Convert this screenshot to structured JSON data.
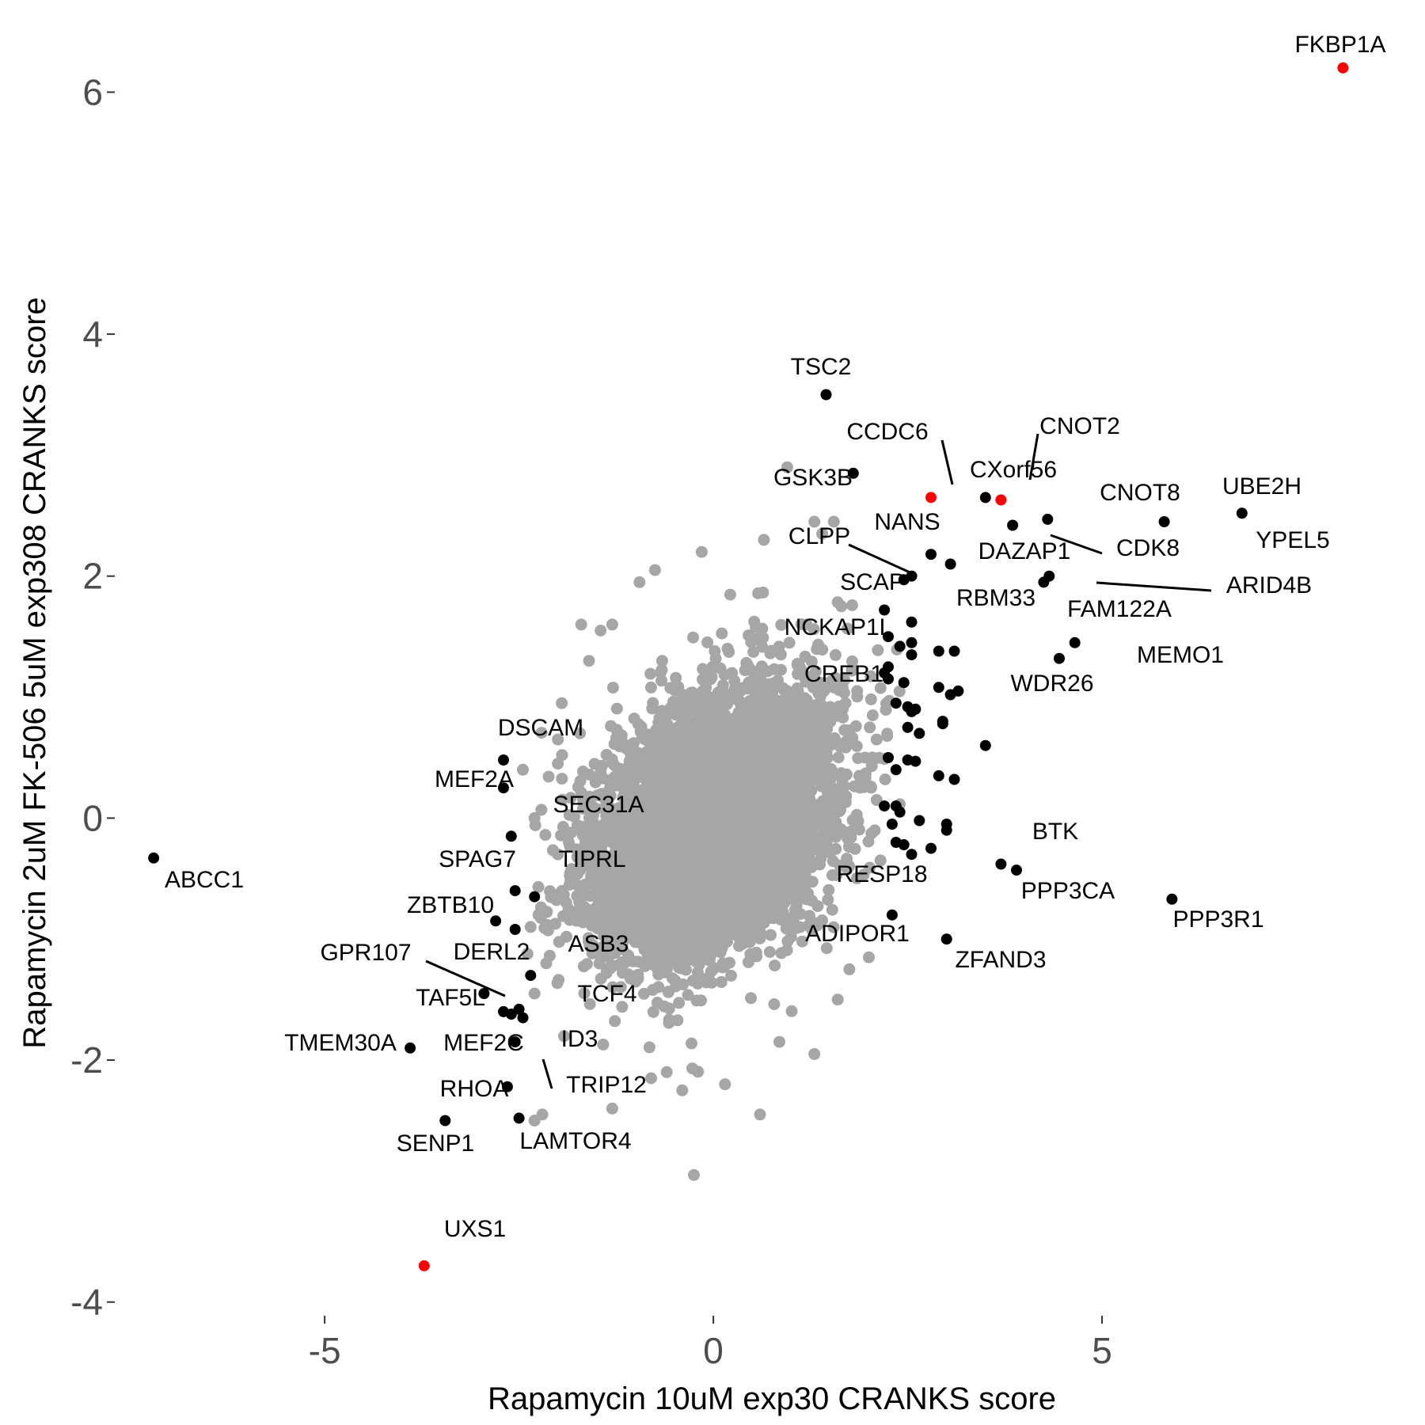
{
  "chart_data": {
    "type": "scatter",
    "xlabel": "Rapamycin 10uM exp30 CRANKS score",
    "ylabel": "Rapamycin 2uM FK-506 5uM exp308 CRANKS score",
    "xlim": [
      -7.7,
      8.9
    ],
    "ylim": [
      -4.1,
      6.5
    ],
    "x_ticks": [
      -5,
      0,
      5
    ],
    "y_ticks": [
      -4,
      -2,
      0,
      2,
      4,
      6
    ],
    "x_tick_labels": [
      "-5",
      "0",
      "5"
    ],
    "y_tick_labels": [
      "-4",
      "-2",
      "0",
      "2",
      "4",
      "6"
    ],
    "grid": false,
    "legend": "none",
    "colors": {
      "background": "#c0c0c0",
      "highlight": "#000000",
      "hit": "#ff0000"
    },
    "background_cloud": {
      "x_center": 0.0,
      "y_center": -0.05,
      "x_sd": 0.72,
      "y_sd": 0.52,
      "correlation": 0.35
    },
    "background_points": [
      [
        -0.15,
        2.2
      ],
      [
        0.65,
        2.3
      ],
      [
        -0.75,
        2.05
      ],
      [
        -0.95,
        1.95
      ],
      [
        -1.7,
        1.6
      ],
      [
        -1.45,
        1.55
      ],
      [
        -1.3,
        1.6
      ],
      [
        0.95,
        2.9
      ],
      [
        1.55,
        2.45
      ],
      [
        1.3,
        2.45
      ],
      [
        1.4,
        2.35
      ],
      [
        -2.0,
        0.65
      ],
      [
        -2.45,
        0.4
      ],
      [
        -2.0,
        0.45
      ],
      [
        -2.3,
        0.0
      ],
      [
        -2.0,
        -0.3
      ],
      [
        -2.35,
        -0.9
      ],
      [
        -2.15,
        -1.2
      ],
      [
        -2.3,
        -1.45
      ],
      [
        -2.2,
        -2.45
      ],
      [
        -2.3,
        -2.5
      ],
      [
        -1.3,
        -2.4
      ],
      [
        -0.8,
        -2.15
      ],
      [
        -0.4,
        -2.25
      ],
      [
        0.15,
        -2.2
      ],
      [
        0.6,
        -2.45
      ],
      [
        0.85,
        -1.85
      ],
      [
        1.3,
        -1.95
      ],
      [
        1.6,
        -1.5
      ],
      [
        2.0,
        -1.15
      ],
      [
        1.75,
        -1.25
      ],
      [
        -0.25,
        -2.95
      ],
      [
        -0.6,
        -2.1
      ],
      [
        1.95,
        0.5
      ],
      [
        2.05,
        0.85
      ],
      [
        1.85,
        1.05
      ],
      [
        2.1,
        0.15
      ],
      [
        2.15,
        -0.35
      ],
      [
        1.7,
        0.95
      ],
      [
        1.2,
        1.6
      ],
      [
        -1.55,
        -1.05
      ],
      [
        -1.85,
        -0.55
      ],
      [
        -1.95,
        0.95
      ],
      [
        -1.6,
        1.3
      ]
    ],
    "highlight_points": [
      [
        1.45,
        3.5
      ],
      [
        1.8,
        2.85
      ],
      [
        3.5,
        2.65
      ],
      [
        3.85,
        2.42
      ],
      [
        4.3,
        2.47
      ],
      [
        5.8,
        2.45
      ],
      [
        6.8,
        2.52
      ],
      [
        2.8,
        2.18
      ],
      [
        3.05,
        2.1
      ],
      [
        2.45,
        1.97
      ],
      [
        2.55,
        2.0
      ],
      [
        4.25,
        1.95
      ],
      [
        4.32,
        2.0
      ],
      [
        2.2,
        1.72
      ],
      [
        2.55,
        1.62
      ],
      [
        2.25,
        1.5
      ],
      [
        2.55,
        1.45
      ],
      [
        2.4,
        1.42
      ],
      [
        2.55,
        1.35
      ],
      [
        2.9,
        1.38
      ],
      [
        3.1,
        1.38
      ],
      [
        4.65,
        1.45
      ],
      [
        4.45,
        1.32
      ],
      [
        2.25,
        1.25
      ],
      [
        2.2,
        1.2
      ],
      [
        2.25,
        1.15
      ],
      [
        2.45,
        1.12
      ],
      [
        2.9,
        1.08
      ],
      [
        3.05,
        1.02
      ],
      [
        3.15,
        1.05
      ],
      [
        2.35,
        0.95
      ],
      [
        2.5,
        0.92
      ],
      [
        2.55,
        0.88
      ],
      [
        2.6,
        0.9
      ],
      [
        2.95,
        0.8
      ],
      [
        2.95,
        0.78
      ],
      [
        2.5,
        0.75
      ],
      [
        2.65,
        0.7
      ],
      [
        3.5,
        0.6
      ],
      [
        2.25,
        0.5
      ],
      [
        2.5,
        0.48
      ],
      [
        2.6,
        0.47
      ],
      [
        2.35,
        0.4
      ],
      [
        2.9,
        0.35
      ],
      [
        3.1,
        0.32
      ],
      [
        2.2,
        0.1
      ],
      [
        2.35,
        0.1
      ],
      [
        2.4,
        0.05
      ],
      [
        2.3,
        -0.05
      ],
      [
        2.65,
        -0.02
      ],
      [
        3.0,
        -0.05
      ],
      [
        3.0,
        -0.1
      ],
      [
        2.35,
        -0.2
      ],
      [
        2.45,
        -0.22
      ],
      [
        2.8,
        -0.25
      ],
      [
        2.55,
        -0.3
      ],
      [
        2.3,
        -0.8
      ],
      [
        3.0,
        -1.0
      ],
      [
        3.7,
        -0.38
      ],
      [
        3.9,
        -0.43
      ],
      [
        5.9,
        -0.67
      ],
      [
        -7.2,
        -0.33
      ],
      [
        -2.7,
        0.48
      ],
      [
        -2.7,
        0.25
      ],
      [
        -2.6,
        -0.15
      ],
      [
        -2.55,
        -0.6
      ],
      [
        -2.3,
        -0.65
      ],
      [
        -2.8,
        -0.85
      ],
      [
        -2.55,
        -0.92
      ],
      [
        -2.35,
        -1.3
      ],
      [
        -2.95,
        -1.45
      ],
      [
        -2.7,
        -1.6
      ],
      [
        -2.6,
        -1.62
      ],
      [
        -2.5,
        -1.58
      ],
      [
        -2.45,
        -1.65
      ],
      [
        -2.55,
        -1.85
      ],
      [
        -3.9,
        -1.9
      ],
      [
        -2.65,
        -2.22
      ],
      [
        -3.45,
        -2.5
      ],
      [
        -2.5,
        -2.48
      ]
    ],
    "hit_points": [
      [
        8.1,
        6.2
      ],
      [
        2.8,
        2.65
      ],
      [
        3.7,
        2.63
      ],
      [
        -3.72,
        -3.7
      ]
    ],
    "labels": [
      {
        "text": "FKBP1A",
        "x": 8.1,
        "y": 6.2
      },
      {
        "text": "TSC2",
        "x": 1.45,
        "y": 3.5
      },
      {
        "text": "CCDC6",
        "x": 2.8,
        "y": 2.65
      },
      {
        "text": "CNOT2",
        "x": 3.7,
        "y": 2.63
      },
      {
        "text": "CXorf56",
        "x": 3.7,
        "y": 2.63
      },
      {
        "text": "GSK3B",
        "x": 1.8,
        "y": 2.85
      },
      {
        "text": "CNOT8",
        "x": 5.8,
        "y": 2.45
      },
      {
        "text": "UBE2H",
        "x": 6.8,
        "y": 2.52
      },
      {
        "text": "NANS",
        "x": 2.8,
        "y": 2.18
      },
      {
        "text": "CLPP",
        "x": 2.55,
        "y": 2.0
      },
      {
        "text": "DAZAP1",
        "x": 3.05,
        "y": 2.1
      },
      {
        "text": "CDK8",
        "x": 3.85,
        "y": 2.42
      },
      {
        "text": "YPEL5",
        "x": 6.8,
        "y": 2.52
      },
      {
        "text": "SCAP",
        "x": 2.2,
        "y": 1.72
      },
      {
        "text": "ARID4B",
        "x": 4.32,
        "y": 2.0
      },
      {
        "text": "RBM33",
        "x": 2.55,
        "y": 1.97
      },
      {
        "text": "FAM122A",
        "x": 4.25,
        "y": 1.95
      },
      {
        "text": "NCKAP1L",
        "x": 2.25,
        "y": 1.5
      },
      {
        "text": "MEMO1",
        "x": 4.65,
        "y": 1.45
      },
      {
        "text": "CREB1",
        "x": 2.2,
        "y": 1.2
      },
      {
        "text": "WDR26",
        "x": 3.15,
        "y": 1.05
      },
      {
        "text": "DSCAM",
        "x": -2.7,
        "y": 0.48
      },
      {
        "text": "MEF2A",
        "x": -2.7,
        "y": 0.25
      },
      {
        "text": "SEC31A",
        "x": -2.6,
        "y": -0.15
      },
      {
        "text": "BTK",
        "x": 3.7,
        "y": -0.38
      },
      {
        "text": "ABCC1",
        "x": -7.2,
        "y": -0.33
      },
      {
        "text": "SPAG7",
        "x": -2.55,
        "y": -0.6
      },
      {
        "text": "TIPRL",
        "x": -2.3,
        "y": -0.65
      },
      {
        "text": "RESP18",
        "x": 2.3,
        "y": -0.8
      },
      {
        "text": "PPP3CA",
        "x": 3.9,
        "y": -0.43
      },
      {
        "text": "PPP3R1",
        "x": 5.9,
        "y": -0.67
      },
      {
        "text": "ZBTB10",
        "x": -2.8,
        "y": -0.85
      },
      {
        "text": "ADIPOR1",
        "x": 2.3,
        "y": -0.8
      },
      {
        "text": "ZFAND3",
        "x": 3.0,
        "y": -1.0
      },
      {
        "text": "ASB3",
        "x": -2.55,
        "y": -0.92
      },
      {
        "text": "GPR107",
        "x": -2.95,
        "y": -1.45
      },
      {
        "text": "DERL2",
        "x": -2.35,
        "y": -1.3
      },
      {
        "text": "TCF4",
        "x": -2.5,
        "y": -1.58
      },
      {
        "text": "TAF5L",
        "x": -2.95,
        "y": -1.45
      },
      {
        "text": "TMEM30A",
        "x": -3.9,
        "y": -1.9
      },
      {
        "text": "MEF2C",
        "x": -2.55,
        "y": -1.85
      },
      {
        "text": "ID3",
        "x": -2.55,
        "y": -1.85
      },
      {
        "text": "TRIP12",
        "x": -2.55,
        "y": -1.85
      },
      {
        "text": "RHOA",
        "x": -2.65,
        "y": -2.22
      },
      {
        "text": "SENP1",
        "x": -3.45,
        "y": -2.5
      },
      {
        "text": "LAMTOR4",
        "x": -2.5,
        "y": -2.48
      },
      {
        "text": "UXS1",
        "x": -3.72,
        "y": -3.7
      }
    ]
  }
}
